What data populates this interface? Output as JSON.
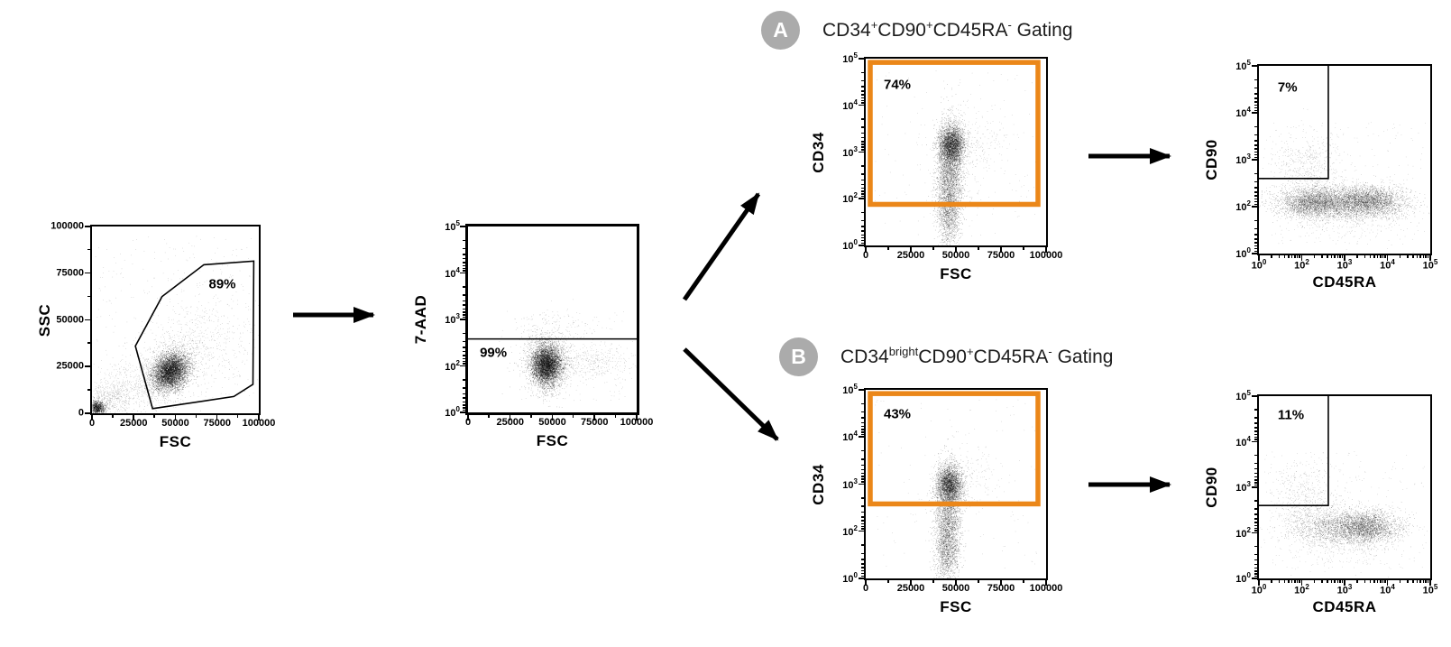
{
  "figure": {
    "background": "#ffffff",
    "accent_orange": "#EB8719",
    "badge_gray": "#ABABAB",
    "point_color": "#000000"
  },
  "branches": [
    {
      "badge": "A",
      "title_plain": "CD34+CD90+CD45RA- Gating",
      "title_segments": [
        {
          "text": "CD34"
        },
        {
          "text": "+",
          "sup": true
        },
        {
          "text": "CD90"
        },
        {
          "text": "+",
          "sup": true
        },
        {
          "text": "CD45RA"
        },
        {
          "text": "-",
          "sup": true
        },
        {
          "text": " Gating"
        }
      ]
    },
    {
      "badge": "B",
      "title_plain": "CD34brightCD90+CD45RA- Gating",
      "title_segments": [
        {
          "text": "CD34"
        },
        {
          "text": "bright",
          "sup": true
        },
        {
          "text": "CD90"
        },
        {
          "text": "+",
          "sup": true
        },
        {
          "text": "CD45RA"
        },
        {
          "text": "-",
          "sup": true
        },
        {
          "text": " Gating"
        }
      ]
    }
  ],
  "chart_data": [
    {
      "id": "ssc-vs-fsc",
      "type": "scatter",
      "xlabel": "FSC",
      "ylabel": "SSC",
      "x_axis": {
        "scale": "linear",
        "range": [
          0,
          100000
        ],
        "tick_labels": [
          "0",
          "25000",
          "50000",
          "75000",
          "100000"
        ]
      },
      "y_axis": {
        "scale": "linear",
        "range": [
          0,
          100000
        ],
        "tick_labels_top_to_bottom": [
          "100000",
          "75000",
          "50000",
          "25000",
          "0"
        ]
      },
      "gate": {
        "shape": "polygon",
        "label": "89%",
        "label_f": [
          0.7,
          0.31
        ],
        "points_f": [
          [
            0.26,
            0.64
          ],
          [
            0.42,
            0.375
          ],
          [
            0.67,
            0.205
          ],
          [
            0.97,
            0.185
          ],
          [
            0.965,
            0.845
          ],
          [
            0.85,
            0.91
          ],
          [
            0.363,
            0.975
          ]
        ],
        "approx_points_data_fsc_ssc": [
          [
            26000,
            36000
          ],
          [
            42000,
            62500
          ],
          [
            67000,
            79500
          ],
          [
            97000,
            81500
          ],
          [
            96500,
            15500
          ],
          [
            85000,
            9000
          ],
          [
            36300,
            2500
          ]
        ]
      },
      "clusters": [
        {
          "fx": 0.47,
          "fy": 0.775,
          "sx": 0.052,
          "sy": 0.048,
          "rho": -0.25,
          "n": 5000,
          "a": 0.5,
          "note": "main leukocyte cluster FSC~47000 SSC~22000"
        },
        {
          "fx": 0.47,
          "fy": 0.76,
          "sx": 0.1,
          "sy": 0.09,
          "rho": -0.3,
          "n": 900,
          "a": 0.4
        },
        {
          "fx": 0.03,
          "fy": 0.97,
          "sx": 0.022,
          "sy": 0.018,
          "n": 900,
          "a": 0.55,
          "note": "debris at origin"
        },
        {
          "fx": 0.1,
          "fy": 0.92,
          "sx": 0.07,
          "sy": 0.05,
          "n": 450,
          "a": 0.35
        },
        {
          "fx": 0.25,
          "fy": 0.85,
          "sx": 0.1,
          "sy": 0.07,
          "n": 350,
          "a": 0.3
        },
        {
          "fx": 0.7,
          "fy": 0.6,
          "sx": 0.17,
          "sy": 0.13,
          "n": 430,
          "a": 0.3,
          "note": "diffuse high-FSC arm"
        },
        {
          "type": "uniform",
          "x0": 0.02,
          "x1": 0.98,
          "y0": 0.05,
          "y1": 0.95,
          "n": 330,
          "a": 0.3
        }
      ]
    },
    {
      "id": "7aad-vs-fsc",
      "type": "scatter",
      "xlabel": "FSC",
      "ylabel": "7-AAD",
      "x_axis": {
        "scale": "linear",
        "range": [
          0,
          100000
        ],
        "tick_labels": [
          "0",
          "25000",
          "50000",
          "75000",
          "100000"
        ]
      },
      "y_axis": {
        "scale": "log",
        "tick_exponents_top_to_bottom": [
          5,
          4,
          3,
          2,
          0
        ]
      },
      "gate": {
        "shape": "hline",
        "label": "99%",
        "label_f": [
          0.07,
          0.68
        ],
        "line_fy": 0.605,
        "approx_threshold": "live gate: 7-AAD below ~3x10^2"
      },
      "clusters": [
        {
          "fx": 0.465,
          "fy": 0.745,
          "sx": 0.042,
          "sy": 0.052,
          "n": 5200,
          "a": 0.5,
          "note": "viable cells FSC~47000, 7-AAD~10^1.7"
        },
        {
          "fx": 0.465,
          "fy": 0.73,
          "sx": 0.075,
          "sy": 0.09,
          "n": 900,
          "a": 0.4
        },
        {
          "fx": 0.72,
          "fy": 0.73,
          "sx": 0.14,
          "sy": 0.05,
          "n": 430,
          "a": 0.3,
          "note": "high-FSC tail"
        },
        {
          "fx": 0.5,
          "fy": 0.56,
          "sx": 0.13,
          "sy": 0.05,
          "n": 130,
          "a": 0.3
        },
        {
          "type": "uniform",
          "x0": 0.3,
          "x1": 0.95,
          "y0": 0.45,
          "y1": 0.95,
          "n": 120,
          "a": 0.3
        }
      ]
    },
    {
      "id": "a-cd34-vs-fsc",
      "type": "scatter",
      "xlabel": "FSC",
      "ylabel": "CD34",
      "x_axis": {
        "scale": "linear",
        "range": [
          0,
          100000
        ],
        "tick_labels": [
          "0",
          "25000",
          "50000",
          "75000",
          "100000"
        ]
      },
      "y_axis": {
        "scale": "log",
        "tick_exponents_top_to_bottom": [
          5,
          4,
          3,
          2,
          0
        ]
      },
      "gate": {
        "shape": "rect",
        "color": "orange",
        "label": "74%",
        "label_f": [
          0.1,
          0.14
        ],
        "rect_f": [
          0.025,
          0.02,
          0.955,
          0.78
        ],
        "approx": "CD34+ gate: CD34 above ~7x10^1"
      },
      "clusters": [
        {
          "fx": 0.475,
          "fy": 0.46,
          "sx": 0.034,
          "sy": 0.05,
          "n": 2600,
          "a": 0.5,
          "note": "CD34 blob near 10^3"
        },
        {
          "fx": 0.465,
          "fy": 0.6,
          "sx": 0.036,
          "sy": 0.14,
          "n": 2600,
          "a": 0.45,
          "note": "vertical streak"
        },
        {
          "fx": 0.46,
          "fy": 0.82,
          "sx": 0.032,
          "sy": 0.09,
          "n": 1100,
          "a": 0.45
        },
        {
          "fx": 0.6,
          "fy": 0.45,
          "sx": 0.1,
          "sy": 0.09,
          "n": 260,
          "a": 0.3
        },
        {
          "type": "uniform",
          "x0": 0.05,
          "x1": 0.95,
          "y0": 0.05,
          "y1": 0.95,
          "n": 150,
          "a": 0.3
        }
      ]
    },
    {
      "id": "a-cd90-vs-cd45ra",
      "type": "scatter",
      "xlabel": "CD45RA",
      "ylabel": "CD90",
      "x_axis": {
        "scale": "log",
        "tick_exponents_left_to_right": [
          0,
          2,
          3,
          4,
          5
        ]
      },
      "y_axis": {
        "scale": "log",
        "tick_exponents_top_to_bottom": [
          5,
          4,
          3,
          2,
          0
        ]
      },
      "gate": {
        "shape": "corner",
        "label": "7%",
        "label_f": [
          0.11,
          0.115
        ],
        "corner_f": [
          0.405,
          0.6
        ],
        "approx": "CD90+CD45RA- gate: CD45RA below ~4x10^2, CD90 above ~3x10^2"
      },
      "clusters": [
        {
          "fx": 0.47,
          "fy": 0.725,
          "sx": 0.18,
          "sy": 0.042,
          "n": 3300,
          "a": 0.45,
          "note": "CD90~10^2 band across CD45RA"
        },
        {
          "fx": 0.65,
          "fy": 0.72,
          "sx": 0.09,
          "sy": 0.038,
          "n": 1500,
          "a": 0.45
        },
        {
          "fx": 0.3,
          "fy": 0.73,
          "sx": 0.08,
          "sy": 0.04,
          "n": 1200,
          "a": 0.45
        },
        {
          "fx": 0.27,
          "fy": 0.53,
          "sx": 0.1,
          "sy": 0.09,
          "n": 520,
          "a": 0.32,
          "note": "CD90+ cloud inside gate"
        },
        {
          "fx": 0.5,
          "fy": 0.8,
          "sx": 0.2,
          "sy": 0.07,
          "n": 400,
          "a": 0.3
        },
        {
          "type": "uniform",
          "x0": 0.03,
          "x1": 0.97,
          "y0": 0.3,
          "y1": 0.95,
          "n": 260,
          "a": 0.3
        }
      ]
    },
    {
      "id": "b-cd34-vs-fsc",
      "type": "scatter",
      "xlabel": "FSC",
      "ylabel": "CD34",
      "x_axis": {
        "scale": "linear",
        "range": [
          0,
          100000
        ],
        "tick_labels": [
          "0",
          "25000",
          "50000",
          "75000",
          "100000"
        ]
      },
      "y_axis": {
        "scale": "log",
        "tick_exponents_top_to_bottom": [
          5,
          4,
          3,
          2,
          0
        ]
      },
      "gate": {
        "shape": "rect",
        "color": "orange",
        "label": "43%",
        "label_f": [
          0.1,
          0.13
        ],
        "rect_f": [
          0.025,
          0.02,
          0.955,
          0.605
        ],
        "approx": "CD34 bright gate: CD34 above ~3x10^2"
      },
      "clusters": [
        {
          "fx": 0.465,
          "fy": 0.5,
          "sx": 0.034,
          "sy": 0.05,
          "n": 2400,
          "a": 0.5
        },
        {
          "fx": 0.455,
          "fy": 0.67,
          "sx": 0.036,
          "sy": 0.13,
          "n": 2400,
          "a": 0.45
        },
        {
          "fx": 0.45,
          "fy": 0.87,
          "sx": 0.032,
          "sy": 0.07,
          "n": 800,
          "a": 0.45
        },
        {
          "fx": 0.58,
          "fy": 0.48,
          "sx": 0.09,
          "sy": 0.08,
          "n": 180,
          "a": 0.3
        },
        {
          "type": "uniform",
          "x0": 0.05,
          "x1": 0.95,
          "y0": 0.05,
          "y1": 0.95,
          "n": 120,
          "a": 0.3
        }
      ]
    },
    {
      "id": "b-cd90-vs-cd45ra",
      "type": "scatter",
      "xlabel": "CD45RA",
      "ylabel": "CD90",
      "x_axis": {
        "scale": "log",
        "tick_exponents_left_to_right": [
          0,
          2,
          3,
          4,
          5
        ]
      },
      "y_axis": {
        "scale": "log",
        "tick_exponents_top_to_bottom": [
          5,
          4,
          3,
          2,
          0
        ]
      },
      "gate": {
        "shape": "corner",
        "label": "11%",
        "label_f": [
          0.11,
          0.105
        ],
        "corner_f": [
          0.405,
          0.6
        ],
        "approx": "CD90+CD45RA- gate: CD45RA below ~4x10^2, CD90 above ~3x10^2"
      },
      "clusters": [
        {
          "fx": 0.62,
          "fy": 0.715,
          "sx": 0.095,
          "sy": 0.045,
          "n": 2400,
          "a": 0.45,
          "note": "dense CD45RA~10^3 CD90~10^2 blob"
        },
        {
          "fx": 0.42,
          "fy": 0.72,
          "sx": 0.12,
          "sy": 0.05,
          "n": 1400,
          "a": 0.4
        },
        {
          "fx": 0.26,
          "fy": 0.56,
          "sx": 0.1,
          "sy": 0.09,
          "n": 480,
          "a": 0.32,
          "note": "CD90+ cloud inside gate"
        },
        {
          "fx": 0.5,
          "fy": 0.82,
          "sx": 0.2,
          "sy": 0.07,
          "n": 300,
          "a": 0.3
        },
        {
          "type": "uniform",
          "x0": 0.03,
          "x1": 0.97,
          "y0": 0.3,
          "y1": 0.95,
          "n": 240,
          "a": 0.3
        }
      ]
    }
  ]
}
